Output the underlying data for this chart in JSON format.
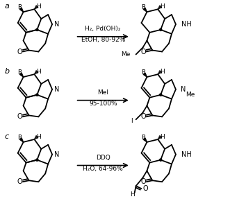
{
  "background": "#ffffff",
  "row_labels": [
    "a",
    "b",
    "c"
  ],
  "reactions": [
    {
      "line1": "H₂, Pd(OH)₂",
      "line2": "EtOH, 80-92%"
    },
    {
      "line1": "MeI",
      "line2": "95-100%"
    },
    {
      "line1": "DDQ",
      "line2": "H₂O, 64-96%"
    }
  ],
  "figsize": [
    3.31,
    2.87
  ],
  "dpi": 100
}
